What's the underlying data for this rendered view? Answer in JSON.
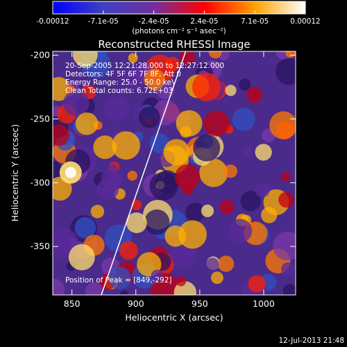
{
  "colorbar": {
    "tick_labels": [
      "-0.00012",
      "-7.1e-05",
      "-2.4e-05",
      "2.4e-05",
      "7.1e-05",
      "0.00012"
    ],
    "unit_label": "(photons cm⁻² s⁻¹ asec⁻²)",
    "stops": [
      "#0000ff",
      "#4040c0",
      "#7030a0",
      "#ff0000",
      "#ffa000",
      "#ffffff"
    ]
  },
  "chart_data": {
    "type": "heatmap",
    "title": "Reconstructed RHESSI Image",
    "xlabel": "Heliocentric X (arcsec)",
    "ylabel": "Heliocentric Y (arcsec)",
    "xlim": [
      835,
      1025
    ],
    "ylim": [
      -388,
      -197
    ],
    "x_ticks": [
      850,
      900,
      950,
      1000
    ],
    "y_ticks": [
      -200,
      -250,
      -300,
      -350
    ],
    "annotations": [
      "20-Sep-2005 12:21:28.000 to 12:27:12.000",
      "Detectors: 4F 5F 6F 7F 8F, Att 0",
      "Energy Range: 25.0 - 50.0 keV",
      "Clean     Total counts: 6.72E+03"
    ],
    "peak_label": "Position of Peak = [849,-292]",
    "peak": [
      849,
      -292
    ],
    "limb_line": [
      [
        873,
        -388
      ],
      [
        939,
        -197
      ]
    ]
  },
  "footer": {
    "timestamp": "12-Jul-2013 21:48"
  }
}
